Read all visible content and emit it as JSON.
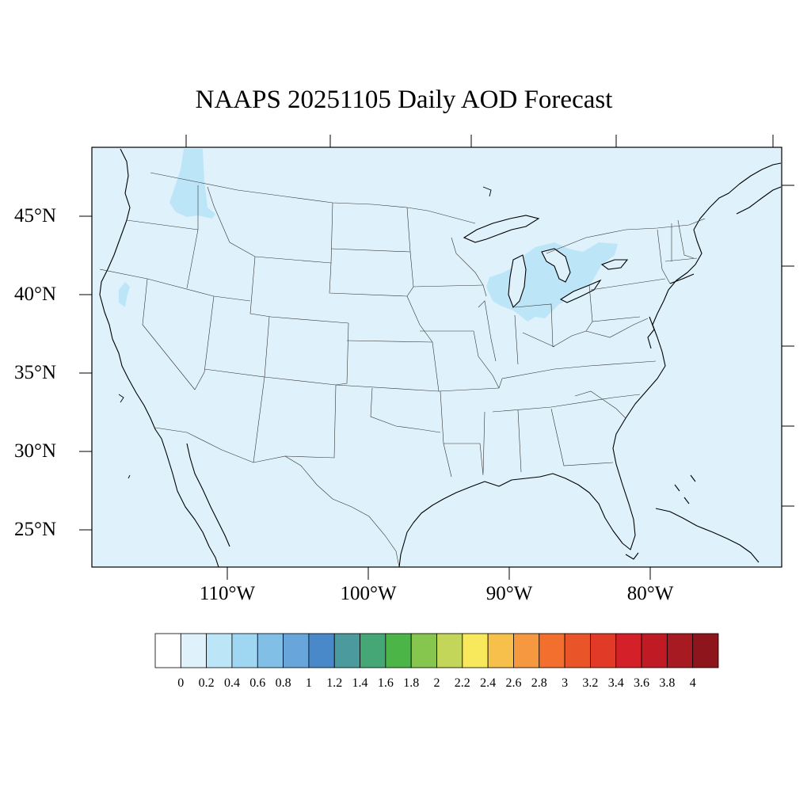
{
  "title": "NAAPS 20251105 Daily AOD Forecast",
  "map": {
    "background_color": "#dff2fb",
    "lat_labels": [
      "45°N",
      "40°N",
      "35°N",
      "30°N",
      "25°N"
    ],
    "lon_labels": [
      "110°W",
      "100°W",
      "90°W",
      "80°W"
    ],
    "plume_color": "#bde5f8"
  },
  "colorbar": {
    "labels": [
      "0",
      "0.2",
      "0.4",
      "0.6",
      "0.8",
      "1",
      "1.2",
      "1.4",
      "1.6",
      "1.8",
      "2",
      "2.2",
      "2.4",
      "2.6",
      "2.8",
      "3",
      "3.2",
      "3.4",
      "3.6",
      "3.8",
      "4"
    ],
    "colors": [
      "#ffffff",
      "#dff2fb",
      "#bde5f8",
      "#9fd6f2",
      "#82bfe6",
      "#67a5da",
      "#4a89c9",
      "#4a9a9e",
      "#45a775",
      "#4bb548",
      "#86c54e",
      "#c4d65a",
      "#f7e85c",
      "#f7c04a",
      "#f5983f",
      "#f26f2d",
      "#ea5429",
      "#e13b27",
      "#d42028",
      "#c01b25",
      "#a81a22",
      "#8f151c"
    ]
  }
}
